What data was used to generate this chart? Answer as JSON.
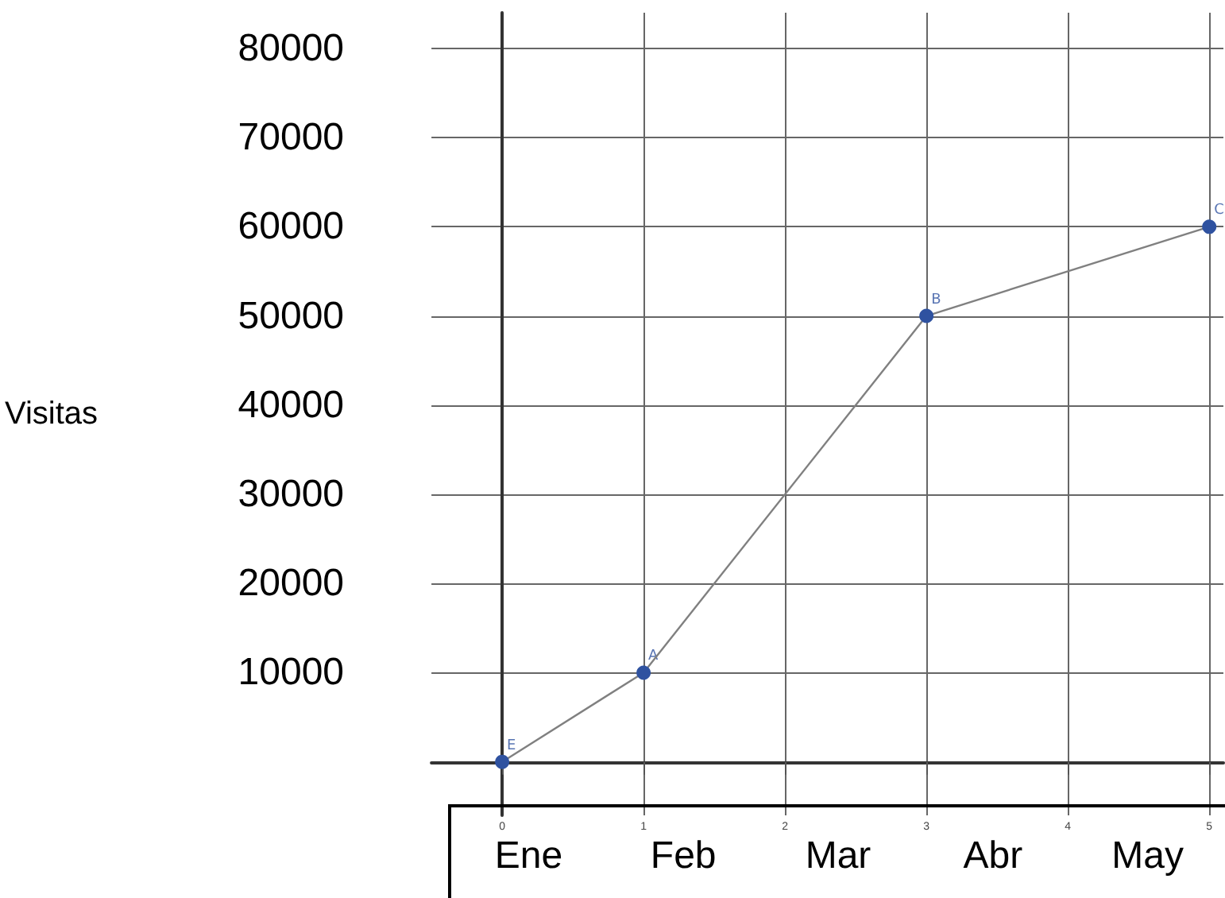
{
  "chart_data": {
    "type": "line",
    "ylabel": "Visitas",
    "x": [
      0,
      1,
      3,
      5
    ],
    "series": [
      {
        "color": "#2f52a0",
        "values": [
          0,
          10000,
          50000,
          60000
        ]
      }
    ],
    "xlim": [
      -0.5,
      5.1
    ],
    "ylim": [
      -6000,
      84000
    ],
    "xticks": [
      0,
      1,
      2,
      3,
      4,
      5
    ],
    "yticks": [
      10000,
      20000,
      30000,
      40000,
      50000,
      60000,
      70000,
      80000
    ],
    "annotations": [
      {
        "text": "E",
        "x": 0,
        "y": 0
      },
      {
        "text": "A",
        "x": 1,
        "y": 10000
      },
      {
        "text": "B",
        "x": 3,
        "y": 50000
      },
      {
        "text": "C",
        "x": 5,
        "y": 60000
      },
      "Ene",
      "Feb",
      "Mar",
      "Abr",
      "May"
    ],
    "grid": true,
    "marker": "circle",
    "line_style": "solid"
  }
}
